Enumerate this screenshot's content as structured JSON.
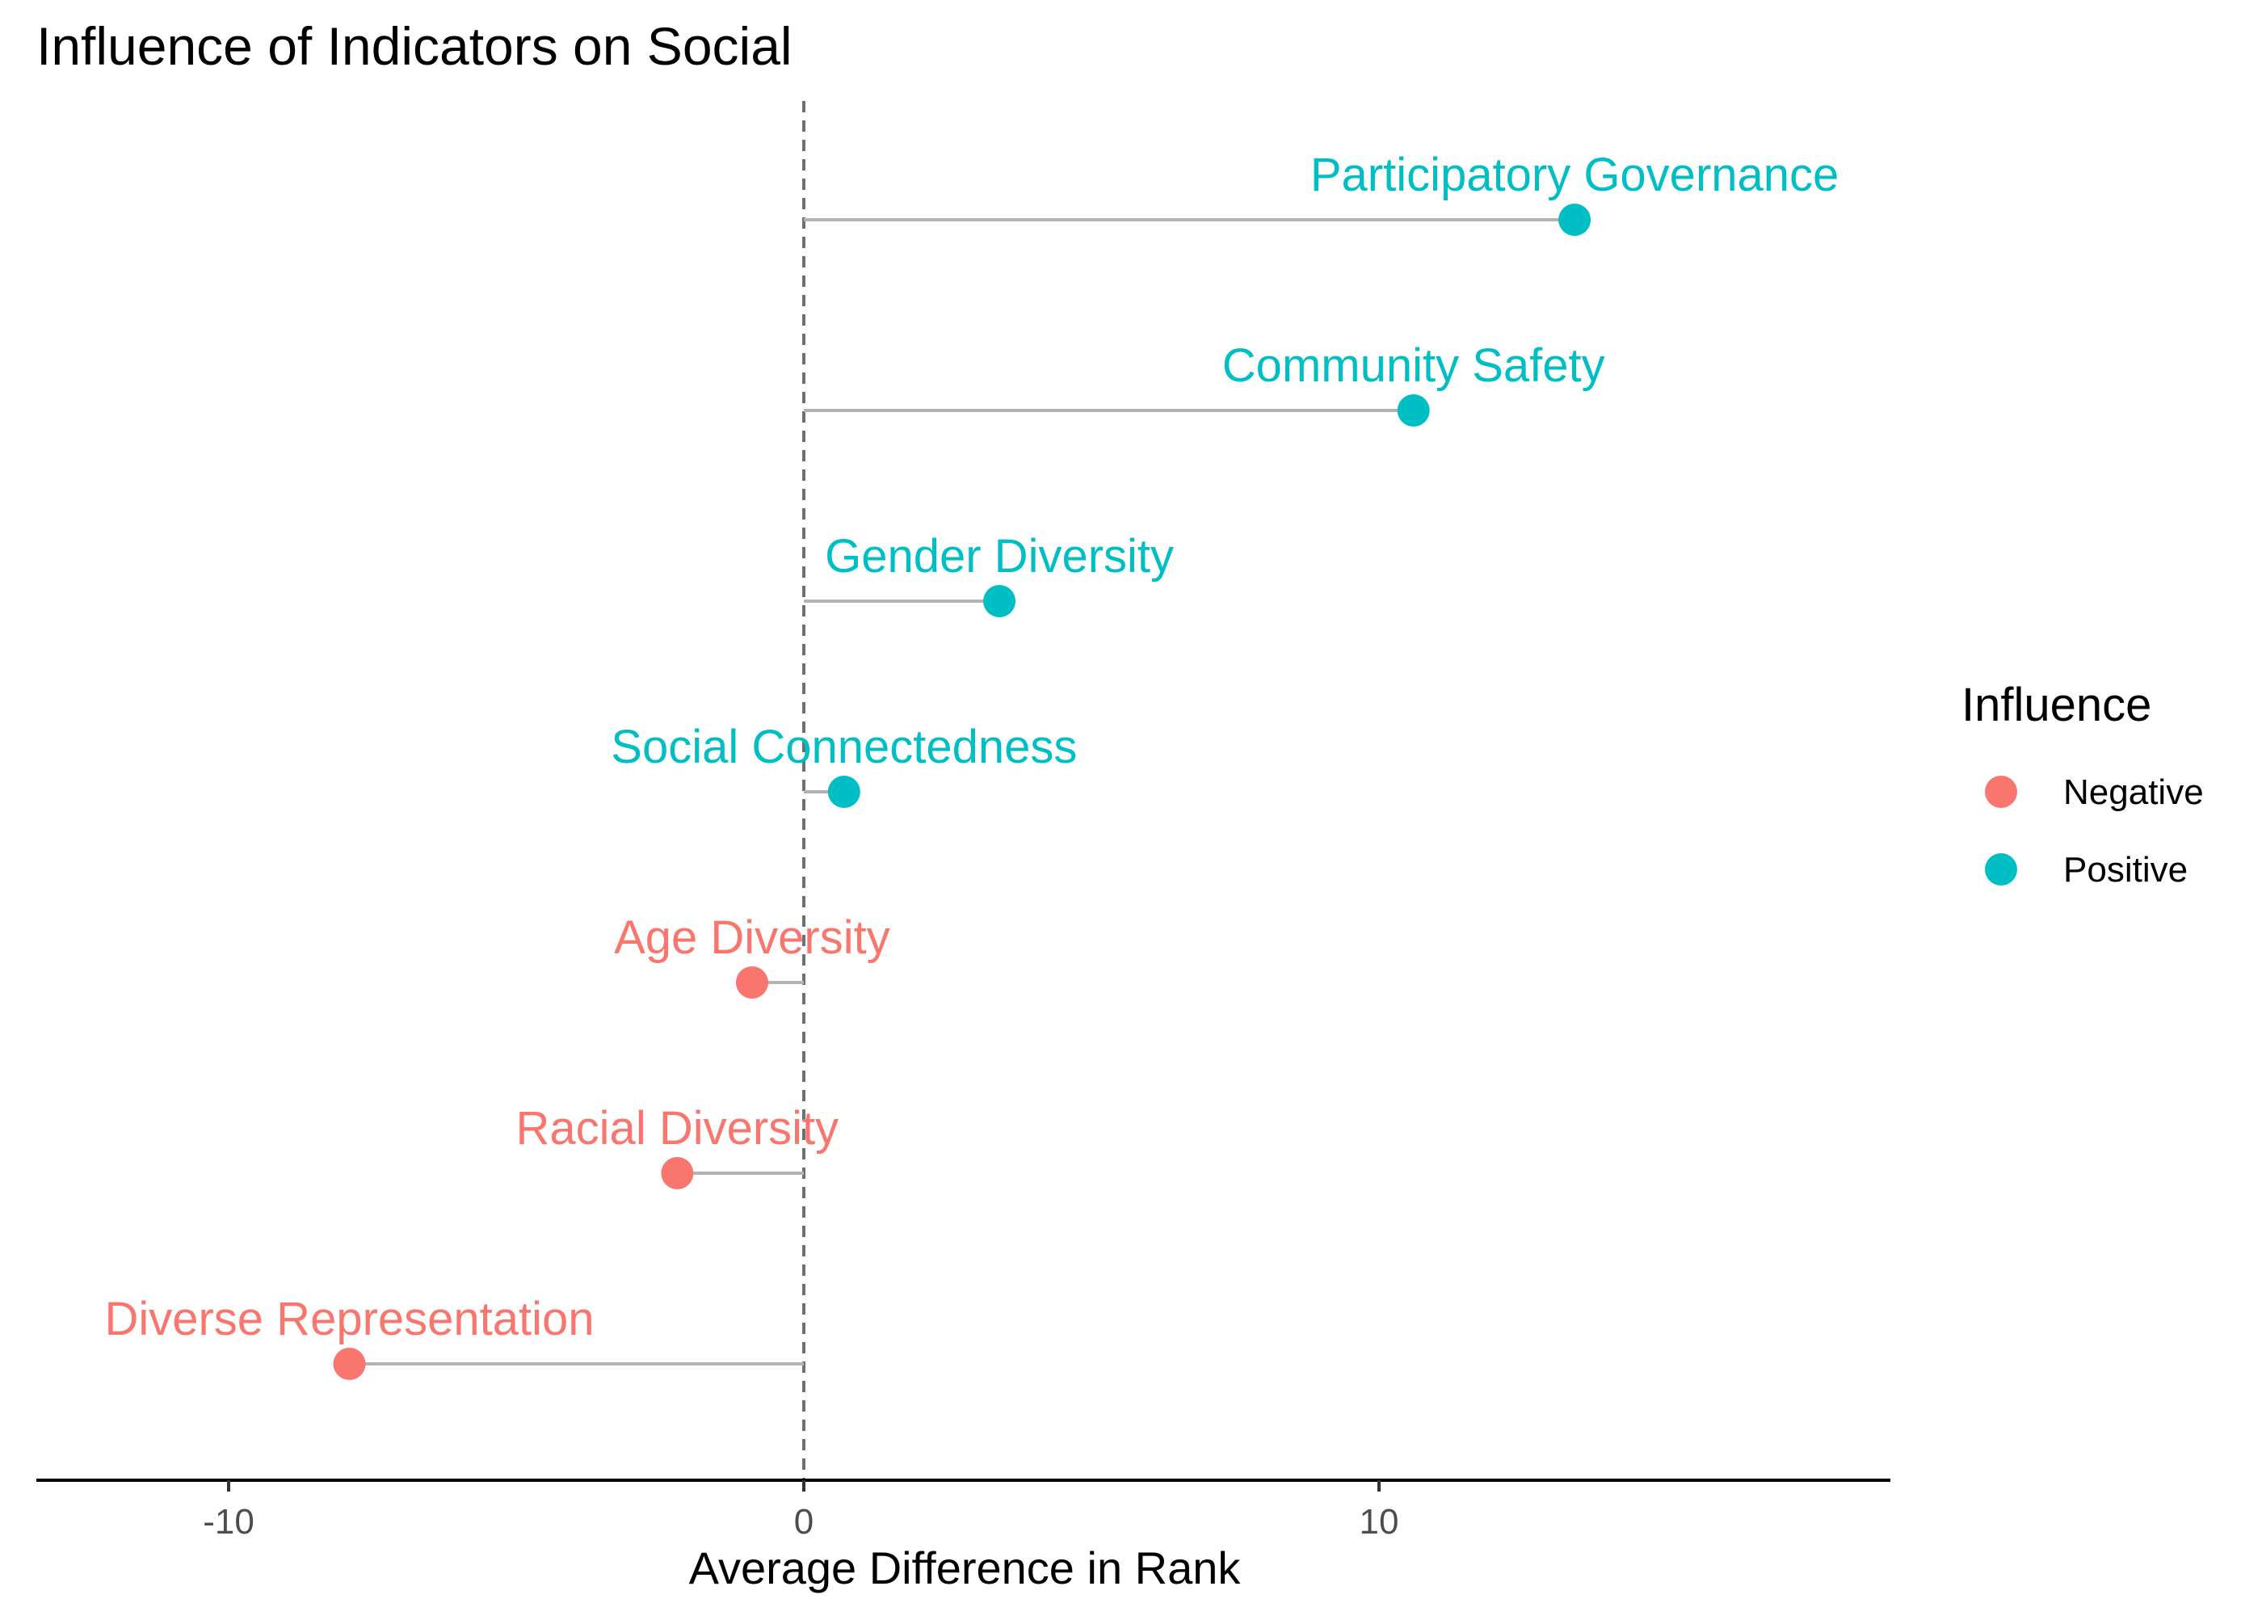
{
  "chart_data": {
    "type": "lollipop",
    "title": "Influence of Indicators on Social",
    "xlabel": "Average Difference in Rank",
    "ylabel": "",
    "xlim": [
      -13.3,
      18.9
    ],
    "x_ticks": [
      -10,
      0,
      10
    ],
    "x_tick_labels": [
      "-10",
      "0",
      "10"
    ],
    "reference_line": {
      "x": 0,
      "style": "dashed"
    },
    "grid": false,
    "legend": {
      "title": "Influence",
      "placement": "right",
      "entries": [
        {
          "name": "Negative",
          "color": "#F8766D"
        },
        {
          "name": "Positive",
          "color": "#00BFC4"
        }
      ]
    },
    "colors": {
      "Negative": "#F8766D",
      "Positive": "#00BFC4",
      "stem": "#b3b3b3",
      "axis": "#000000",
      "refline": "#707070"
    },
    "points": [
      {
        "label": "Participatory Governance",
        "value": 13.4,
        "influence": "Positive"
      },
      {
        "label": "Community Safety",
        "value": 10.6,
        "influence": "Positive"
      },
      {
        "label": "Gender Diversity",
        "value": 3.4,
        "influence": "Positive"
      },
      {
        "label": "Social Connectedness",
        "value": 0.7,
        "influence": "Positive"
      },
      {
        "label": "Age Diversity",
        "value": -0.9,
        "influence": "Negative"
      },
      {
        "label": "Racial Diversity",
        "value": -2.2,
        "influence": "Negative"
      },
      {
        "label": "Diverse Representation",
        "value": -7.9,
        "influence": "Negative"
      }
    ]
  }
}
